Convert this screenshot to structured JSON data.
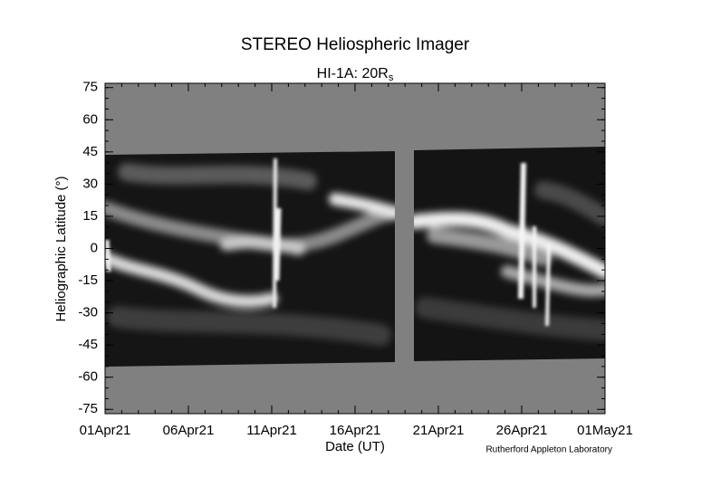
{
  "chart_data": {
    "type": "image",
    "title": "STEREO Heliospheric Imager",
    "subtitle": {
      "text": "HI-1A: 20R",
      "subscript": "s"
    },
    "x_label": "Date (UT)",
    "y_label": "Heliographic Latitude (°)",
    "credit": "Rutherford Appleton Laboratory",
    "xlim": [
      "2021-04-01",
      "2021-05-01"
    ],
    "xticks": [
      {
        "value": "2021-04-01",
        "label": "01Apr21"
      },
      {
        "value": "2021-04-06",
        "label": "06Apr21"
      },
      {
        "value": "2021-04-11",
        "label": "11Apr21"
      },
      {
        "value": "2021-04-16",
        "label": "16Apr21"
      },
      {
        "value": "2021-04-21",
        "label": "21Apr21"
      },
      {
        "value": "2021-04-26",
        "label": "26Apr21"
      },
      {
        "value": "2021-05-01",
        "label": "01May21"
      }
    ],
    "ylim": [
      -77,
      77
    ],
    "yticks": [
      75,
      60,
      45,
      30,
      15,
      0,
      -15,
      -30,
      -45,
      -60,
      -75
    ]
  }
}
